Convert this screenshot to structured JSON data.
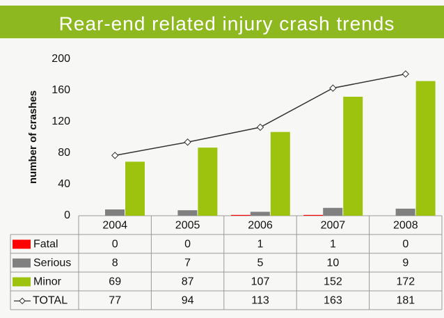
{
  "chart_data": {
    "type": "bar",
    "title": "Rear-end related injury crash trends",
    "y_label": "number of crashes",
    "categories": [
      "2004",
      "2005",
      "2006",
      "2007",
      "2008"
    ],
    "series": [
      {
        "name": "Fatal",
        "color": "#ff0000",
        "values": [
          0,
          0,
          1,
          1,
          0
        ]
      },
      {
        "name": "Serious",
        "color": "#808080",
        "values": [
          8,
          7,
          5,
          10,
          9
        ]
      },
      {
        "name": "Minor",
        "color": "#9dc30f",
        "values": [
          69,
          87,
          107,
          152,
          172
        ]
      },
      {
        "name": "TOTAL",
        "type": "line",
        "color": "#333333",
        "values": [
          77,
          94,
          113,
          163,
          181
        ]
      }
    ],
    "ylim": [
      0,
      200
    ],
    "yticks": [
      0,
      40,
      80,
      120,
      160,
      200
    ],
    "grid": false
  }
}
